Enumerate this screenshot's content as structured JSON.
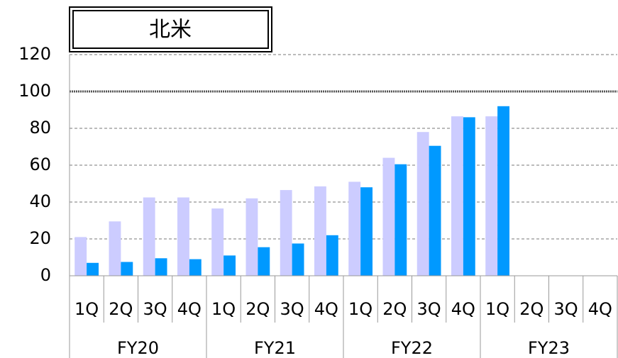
{
  "chart_data": {
    "type": "bar",
    "title": "北米",
    "categories": [
      "1Q",
      "2Q",
      "3Q",
      "4Q",
      "1Q",
      "2Q",
      "3Q",
      "4Q",
      "1Q",
      "2Q",
      "3Q",
      "4Q",
      "1Q",
      "2Q",
      "3Q",
      "4Q"
    ],
    "groups": [
      "FY20",
      "FY21",
      "FY22",
      "FY23"
    ],
    "series": [
      {
        "color": "#ccccff",
        "values": [
          21,
          29.5,
          42.5,
          42.5,
          36.5,
          42,
          46.5,
          48.5,
          51,
          64,
          78,
          86.5,
          86.5,
          null,
          null,
          null
        ]
      },
      {
        "color": "#0099ff",
        "values": [
          7,
          7.5,
          9.5,
          9,
          11,
          15.5,
          17.5,
          22,
          48,
          60.5,
          70.5,
          86,
          92,
          null,
          null,
          null
        ]
      }
    ],
    "ylim": [
      0,
      120
    ],
    "yticks": [
      0,
      20,
      40,
      60,
      80,
      100,
      120
    ],
    "grid": true,
    "reference_line": 100
  }
}
